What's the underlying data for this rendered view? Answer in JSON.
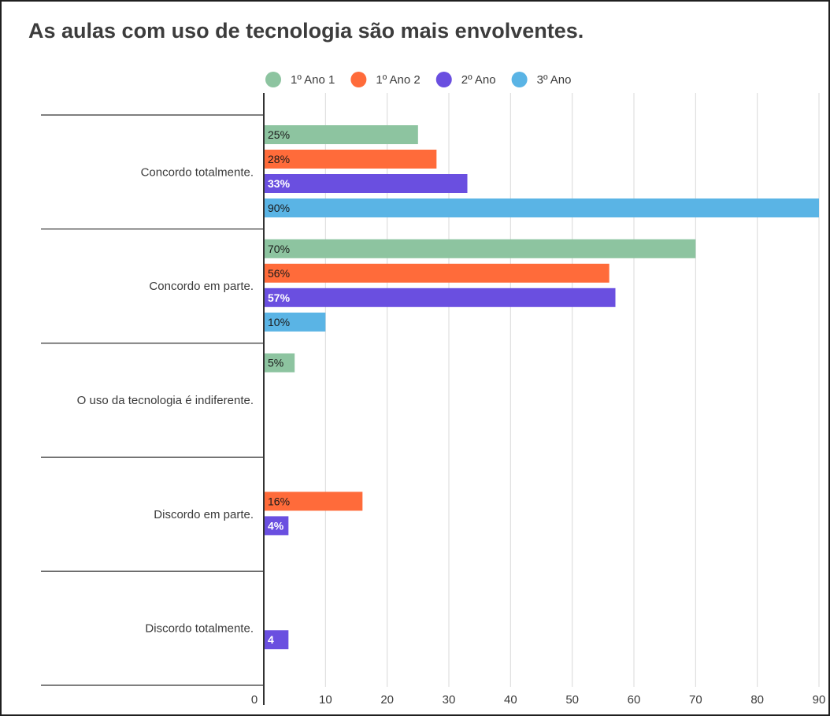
{
  "chart_data": {
    "type": "bar",
    "orientation": "horizontal",
    "title": "As aulas com uso de tecnologia são mais envolventes.",
    "categories": [
      "Concordo totalmente.",
      "Concordo em parte.",
      "O uso da tecnologia é indiferente.",
      "Discordo em parte.",
      "Discordo totalmente."
    ],
    "series": [
      {
        "name": "1º Ano 1",
        "color": "#8dc4a0",
        "values": [
          25,
          70,
          5,
          null,
          null
        ],
        "labels": [
          "25%",
          "70%",
          "5%",
          "",
          ""
        ],
        "label_color": "#1a1a1a"
      },
      {
        "name": "1º Ano 2",
        "color": "#ff6b3a",
        "values": [
          28,
          56,
          null,
          16,
          null
        ],
        "labels": [
          "28%",
          "56%",
          "",
          "16%",
          ""
        ],
        "label_color": "#1a1a1a"
      },
      {
        "name": "2º Ano",
        "color": "#6a4fe0",
        "values": [
          33,
          57,
          null,
          4,
          4
        ],
        "labels": [
          "33%",
          "57%",
          "",
          "4%",
          "4"
        ],
        "label_color": "#ffffff"
      },
      {
        "name": "3º Ano",
        "color": "#5ab4e5",
        "values": [
          90,
          10,
          null,
          null,
          null
        ],
        "labels": [
          "90%",
          "10%",
          "",
          "",
          ""
        ],
        "label_color": "#1a1a1a"
      }
    ],
    "xlim": [
      0,
      90
    ],
    "xticks": [
      0,
      10,
      20,
      30,
      40,
      50,
      60,
      70,
      80,
      90
    ],
    "grid": true,
    "legend": "top"
  }
}
